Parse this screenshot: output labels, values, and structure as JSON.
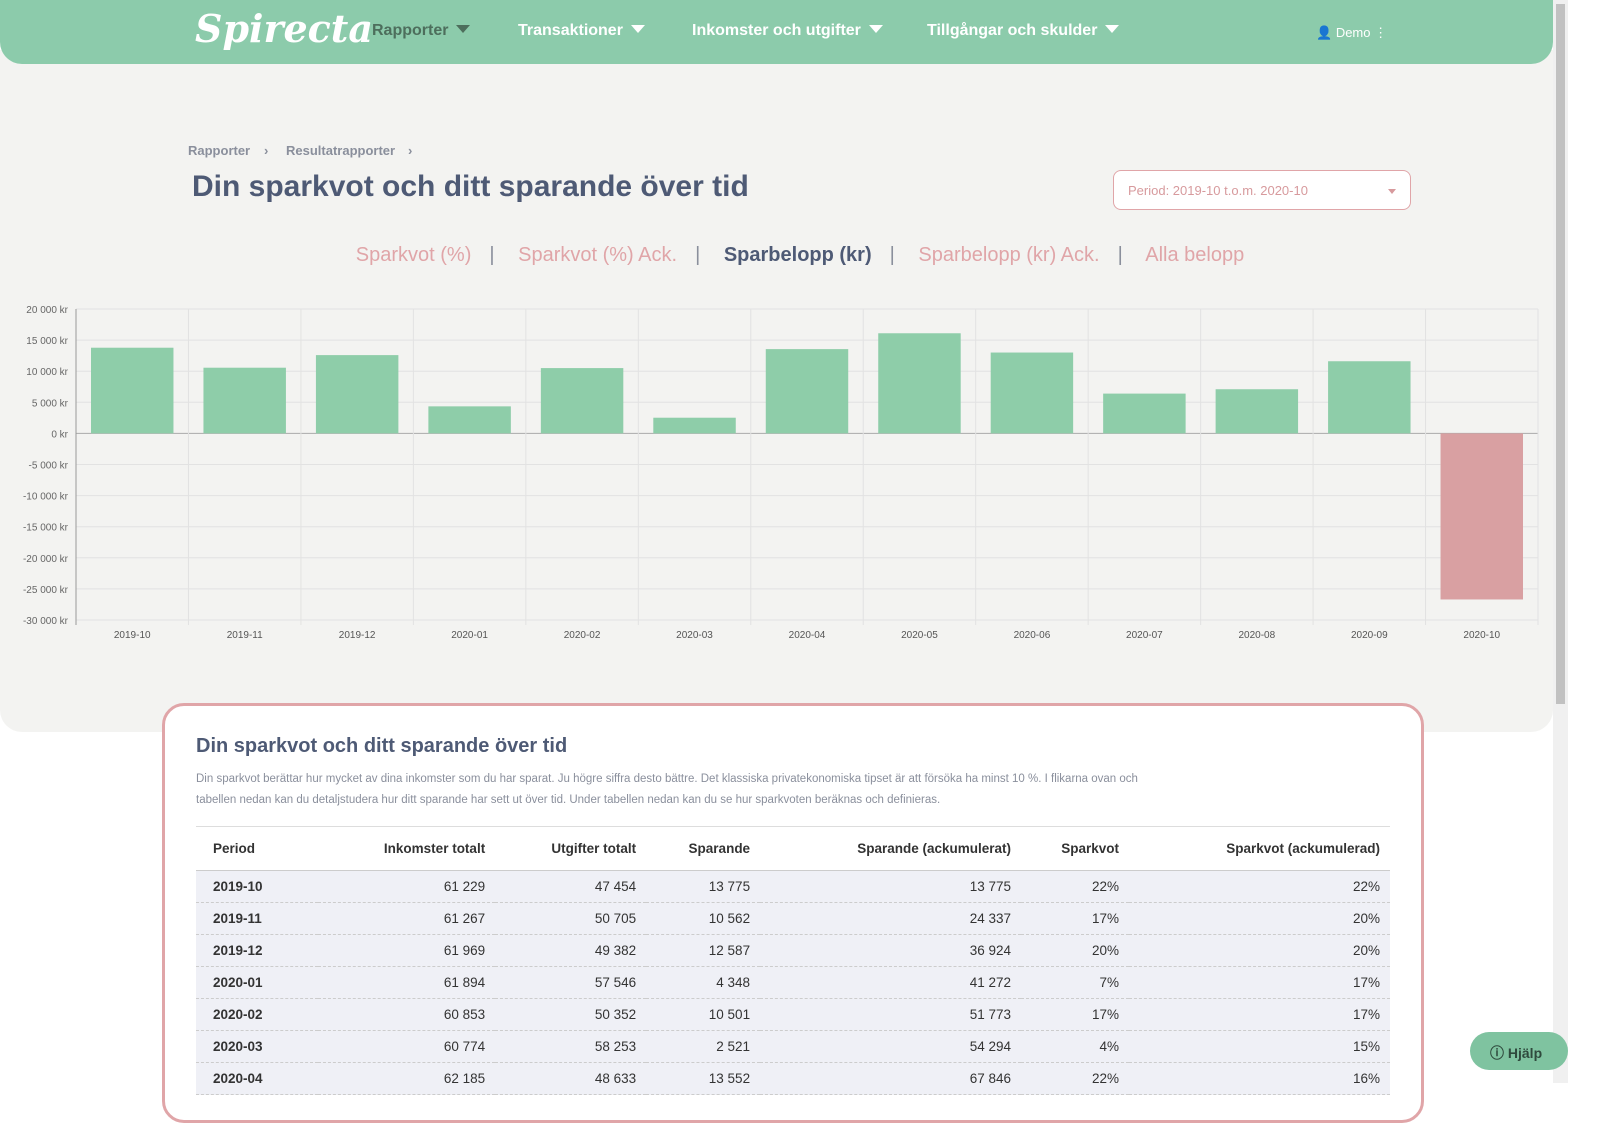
{
  "header": {
    "logo": "Spirecta",
    "nav": [
      "Rapporter",
      "Transaktioner",
      "Inkomster och utgifter",
      "Tillgångar och skulder"
    ],
    "user": "Demo"
  },
  "breadcrumb": [
    "Rapporter",
    "Resultatrapporter"
  ],
  "title": "Din sparkvot och ditt sparande över tid",
  "period": "Period: 2019-10 t.o.m. 2020-10",
  "tabs": [
    "Sparkvot (%)",
    "Sparkvot (%) Ack.",
    "Sparbelopp (kr)",
    "Sparbelopp (kr) Ack.",
    "Alla belopp"
  ],
  "active_tab": 2,
  "chart_data": {
    "type": "bar",
    "categories": [
      "2019-10",
      "2019-11",
      "2019-12",
      "2020-01",
      "2020-02",
      "2020-03",
      "2020-04",
      "2020-05",
      "2020-06",
      "2020-07",
      "2020-08",
      "2020-09",
      "2020-10"
    ],
    "values": [
      13775,
      10562,
      12587,
      4348,
      10501,
      2521,
      13552,
      16100,
      13000,
      6400,
      7100,
      11600,
      -26700
    ],
    "ylim": [
      -30000,
      20000
    ],
    "yticks": [
      "20 000 kr",
      "15 000 kr",
      "10 000 kr",
      "5 000 kr",
      "0 kr",
      "-5 000 kr",
      "-10 000 kr",
      "-15 000 kr",
      "-20 000 kr",
      "-25 000 kr",
      "-30 000 kr"
    ],
    "colors": {
      "positive": "#8ecda9",
      "negative": "#d9a0a2"
    }
  },
  "card": {
    "title": "Din sparkvot och ditt sparande över tid",
    "text": "Din sparkvot berättar hur mycket av dina inkomster som du har sparat. Ju högre siffra desto bättre. Det klassiska privatekonomiska tipset är att försöka ha minst 10 %. I flikarna ovan och tabellen nedan kan du detaljstudera hur ditt sparande har sett ut över tid. Under tabellen nedan kan du se hur sparkvoten beräknas och definieras.",
    "columns": [
      "Period",
      "Inkomster totalt",
      "Utgifter totalt",
      "Sparande",
      "Sparande (ackumulerat)",
      "Sparkvot",
      "Sparkvot (ackumulerad)"
    ],
    "rows": [
      [
        "2019-10",
        "61 229",
        "47 454",
        "13 775",
        "13 775",
        "22%",
        "22%"
      ],
      [
        "2019-11",
        "61 267",
        "50 705",
        "10 562",
        "24 337",
        "17%",
        "20%"
      ],
      [
        "2019-12",
        "61 969",
        "49 382",
        "12 587",
        "36 924",
        "20%",
        "20%"
      ],
      [
        "2020-01",
        "61 894",
        "57 546",
        "4 348",
        "41 272",
        "7%",
        "17%"
      ],
      [
        "2020-02",
        "60 853",
        "50 352",
        "10 501",
        "51 773",
        "17%",
        "17%"
      ],
      [
        "2020-03",
        "60 774",
        "58 253",
        "2 521",
        "54 294",
        "4%",
        "15%"
      ],
      [
        "2020-04",
        "62 185",
        "48 633",
        "13 552",
        "67 846",
        "22%",
        "16%"
      ]
    ]
  },
  "help": "Hjälp"
}
